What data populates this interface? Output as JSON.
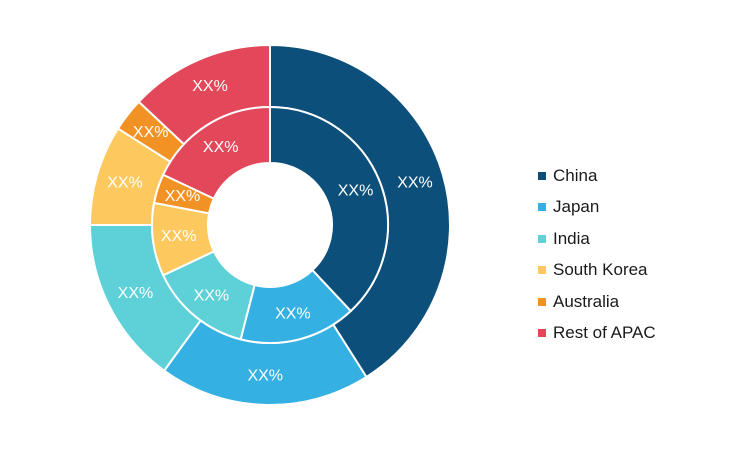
{
  "chart_data": {
    "type": "pie",
    "subtype": "nested-donut",
    "title": "",
    "categories": [
      "China",
      "Japan",
      "India",
      "South Korea",
      "Australia",
      "Rest of APAC"
    ],
    "colors": [
      "#0b4f7a",
      "#35b0e3",
      "#5dd0d8",
      "#fdc95e",
      "#f39224",
      "#e2485a"
    ],
    "series": [
      {
        "ring": "inner",
        "values": [
          38,
          16,
          14,
          10,
          4,
          18
        ],
        "labels": [
          "XX%",
          "XX%",
          "XX%",
          "XX%",
          "XX%",
          "XX%"
        ]
      },
      {
        "ring": "outer",
        "values": [
          41,
          19,
          15,
          9,
          3,
          13
        ],
        "labels": [
          "XX%",
          "XX%",
          "XX%",
          "XX%",
          "XX%",
          "XX%"
        ]
      }
    ],
    "legend_position": "right"
  }
}
